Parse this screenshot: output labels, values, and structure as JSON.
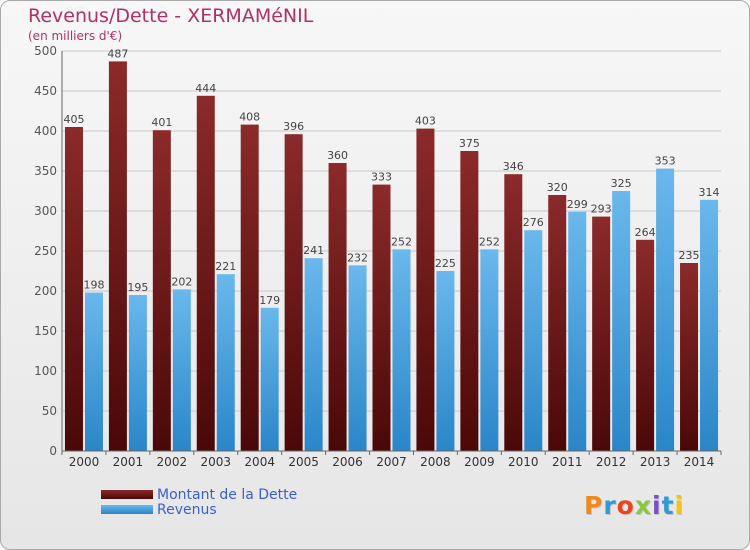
{
  "header": {
    "title": "Revenus/Dette - XERMAMéNIL",
    "subtitle": "(en milliers d'€)"
  },
  "legend": {
    "dette_label": "Montant de la Dette",
    "revenus_label": "Revenus"
  },
  "logo": {
    "text": "Proxiti"
  },
  "colors": {
    "dette_top": "#8b2a2a",
    "dette_bottom": "#4a0808",
    "revenus_top": "#6ab8ec",
    "revenus_bottom": "#2a86c8",
    "title": "#b0306a",
    "legend_text": "#3c5fcf"
  },
  "chart_data": {
    "type": "bar",
    "title": "Revenus/Dette - XERMAMéNIL",
    "subtitle": "(en milliers d'€)",
    "xlabel": "",
    "ylabel": "",
    "categories": [
      "2000",
      "2001",
      "2002",
      "2003",
      "2004",
      "2005",
      "2006",
      "2007",
      "2008",
      "2009",
      "2010",
      "2011",
      "2012",
      "2013",
      "2014"
    ],
    "series": [
      {
        "name": "Montant de la Dette",
        "values": [
          405,
          487,
          401,
          444,
          408,
          396,
          360,
          333,
          403,
          375,
          346,
          320,
          293,
          264,
          235
        ]
      },
      {
        "name": "Revenus",
        "values": [
          198,
          195,
          202,
          221,
          179,
          241,
          232,
          252,
          225,
          252,
          276,
          299,
          325,
          353,
          314
        ]
      }
    ],
    "ylim": [
      0,
      500
    ],
    "yticks": [
      0,
      50,
      100,
      150,
      200,
      250,
      300,
      350,
      400,
      450,
      500
    ],
    "grid": true,
    "legend_position": "bottom-left"
  }
}
